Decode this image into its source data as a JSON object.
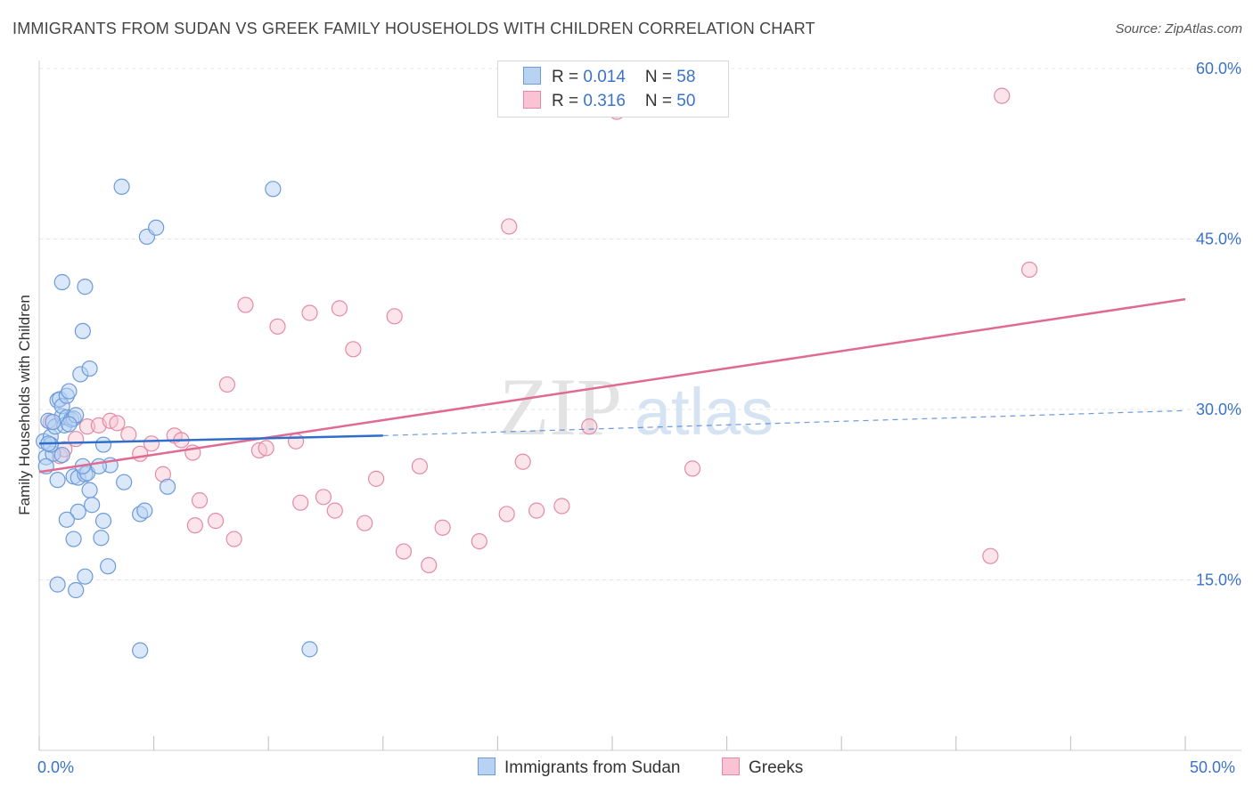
{
  "title": "IMMIGRANTS FROM SUDAN VS GREEK FAMILY HOUSEHOLDS WITH CHILDREN CORRELATION CHART",
  "source": "Source: ZipAtlas.com",
  "watermark": {
    "zip": "ZIP",
    "atlas": "atlas"
  },
  "legend": {
    "rows": [
      {
        "r_label": "R = ",
        "r_value": "0.014",
        "n_label": "N = ",
        "n_value": "58"
      },
      {
        "r_label": "R = ",
        "r_value": "0.316",
        "n_label": "N = ",
        "n_value": "50"
      }
    ]
  },
  "colors": {
    "sudan_fill": "#b8d2f3",
    "sudan_stroke": "#6c9bd8",
    "sudan_line": "#2f6fcc",
    "greek_fill": "#f9c3d3",
    "greek_stroke": "#e48aa8",
    "greek_line": "#e06a92",
    "grid": "#e5e5e5",
    "axis_text": "#3a73c8"
  },
  "chart_data": {
    "type": "scatter",
    "title": "IMMIGRANTS FROM SUDAN VS GREEK FAMILY HOUSEHOLDS WITH CHILDREN CORRELATION CHART",
    "xlabel": "",
    "ylabel": "Family Households with Children",
    "xlim": [
      0,
      50
    ],
    "ylim": [
      0,
      60
    ],
    "x_tick_labels": [
      "0.0%",
      "50.0%"
    ],
    "y_ticks": [
      15,
      30,
      45,
      60
    ],
    "y_tick_labels": [
      "15.0%",
      "30.0%",
      "45.0%",
      "60.0%"
    ],
    "grid": true,
    "series": [
      {
        "name": "Immigrants from Sudan",
        "r": 0.014,
        "n": 58,
        "trend": {
          "x0": 0,
          "y0": 27.0,
          "x1": 15,
          "y1": 27.7,
          "dash_to_x": 50,
          "dash_to_y": 29.9
        },
        "points": [
          [
            0.2,
            27.2
          ],
          [
            0.3,
            25.8
          ],
          [
            0.4,
            29.0
          ],
          [
            0.5,
            27.6
          ],
          [
            0.6,
            26.1
          ],
          [
            0.7,
            28.5
          ],
          [
            0.3,
            25.0
          ],
          [
            0.5,
            26.9
          ],
          [
            0.8,
            30.8
          ],
          [
            0.9,
            30.9
          ],
          [
            1.0,
            29.4
          ],
          [
            1.0,
            30.3
          ],
          [
            1.1,
            28.6
          ],
          [
            1.2,
            31.2
          ],
          [
            1.3,
            31.6
          ],
          [
            1.2,
            29.3
          ],
          [
            1.4,
            29.1
          ],
          [
            1.5,
            24.1
          ],
          [
            1.5,
            29.2
          ],
          [
            1.6,
            29.5
          ],
          [
            1.7,
            24.0
          ],
          [
            1.8,
            33.1
          ],
          [
            1.9,
            36.9
          ],
          [
            2.0,
            24.3
          ],
          [
            2.1,
            24.4
          ],
          [
            2.2,
            33.6
          ],
          [
            2.0,
            40.8
          ],
          [
            1.0,
            41.2
          ],
          [
            0.8,
            23.8
          ],
          [
            2.3,
            21.6
          ],
          [
            2.2,
            22.9
          ],
          [
            1.7,
            21.0
          ],
          [
            1.2,
            20.3
          ],
          [
            1.5,
            18.6
          ],
          [
            2.7,
            18.7
          ],
          [
            2.8,
            20.2
          ],
          [
            3.0,
            16.2
          ],
          [
            2.0,
            15.3
          ],
          [
            0.8,
            14.6
          ],
          [
            1.6,
            14.1
          ],
          [
            2.8,
            26.9
          ],
          [
            3.1,
            25.1
          ],
          [
            3.7,
            23.6
          ],
          [
            3.6,
            49.6
          ],
          [
            4.7,
            45.2
          ],
          [
            5.1,
            46.0
          ],
          [
            4.4,
            20.8
          ],
          [
            4.6,
            21.1
          ],
          [
            5.6,
            23.2
          ],
          [
            10.2,
            49.4
          ],
          [
            4.4,
            8.8
          ],
          [
            11.8,
            8.9
          ],
          [
            1.9,
            25.0
          ],
          [
            2.6,
            25.0
          ],
          [
            1.0,
            26.0
          ],
          [
            0.6,
            28.9
          ],
          [
            1.3,
            28.7
          ],
          [
            0.4,
            27.0
          ]
        ]
      },
      {
        "name": "Greeks",
        "r": 0.316,
        "n": 50,
        "trend": {
          "x0": 0,
          "y0": 24.5,
          "x1": 50,
          "y1": 39.7
        },
        "points": [
          [
            0.5,
            28.9
          ],
          [
            0.9,
            25.9
          ],
          [
            1.1,
            26.5
          ],
          [
            1.6,
            27.4
          ],
          [
            2.1,
            28.5
          ],
          [
            2.6,
            28.6
          ],
          [
            3.1,
            29.0
          ],
          [
            3.4,
            28.8
          ],
          [
            3.9,
            27.8
          ],
          [
            4.4,
            26.1
          ],
          [
            4.9,
            27.0
          ],
          [
            5.4,
            24.3
          ],
          [
            5.9,
            27.7
          ],
          [
            6.2,
            27.3
          ],
          [
            6.7,
            26.2
          ],
          [
            8.2,
            32.2
          ],
          [
            9.0,
            39.2
          ],
          [
            9.6,
            26.4
          ],
          [
            9.9,
            26.6
          ],
          [
            10.4,
            37.3
          ],
          [
            11.2,
            27.2
          ],
          [
            11.8,
            38.5
          ],
          [
            13.1,
            38.9
          ],
          [
            13.7,
            35.3
          ],
          [
            15.5,
            38.2
          ],
          [
            7.0,
            22.0
          ],
          [
            6.8,
            19.8
          ],
          [
            7.7,
            20.2
          ],
          [
            8.5,
            18.6
          ],
          [
            11.4,
            21.8
          ],
          [
            12.4,
            22.3
          ],
          [
            12.9,
            21.1
          ],
          [
            14.2,
            20.0
          ],
          [
            14.7,
            23.9
          ],
          [
            15.9,
            17.5
          ],
          [
            16.6,
            25.0
          ],
          [
            17.0,
            16.3
          ],
          [
            17.6,
            19.6
          ],
          [
            19.2,
            18.4
          ],
          [
            20.4,
            20.8
          ],
          [
            20.5,
            46.1
          ],
          [
            21.1,
            25.4
          ],
          [
            21.7,
            21.1
          ],
          [
            22.8,
            21.5
          ],
          [
            24.0,
            28.5
          ],
          [
            25.2,
            56.2
          ],
          [
            28.5,
            24.8
          ],
          [
            41.5,
            17.1
          ],
          [
            42.0,
            57.6
          ],
          [
            43.2,
            42.3
          ]
        ]
      }
    ]
  }
}
